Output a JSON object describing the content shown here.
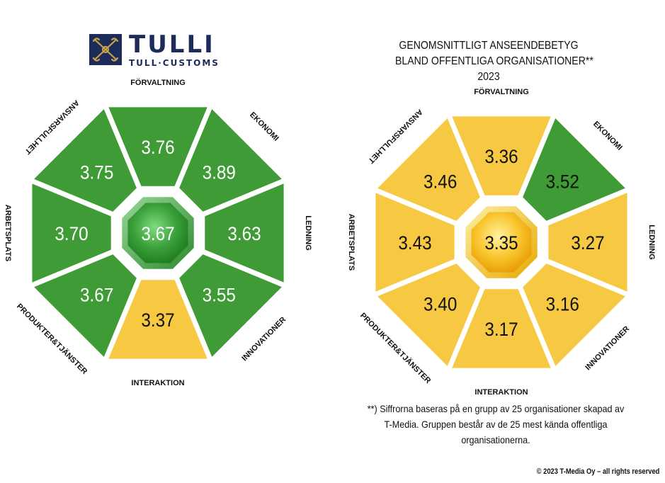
{
  "logo": {
    "name": "TULLI",
    "subtitle": "TULL·CUSTOMS"
  },
  "heading": {
    "line1": "GENOMSNITTLIGT ANSEENDEBETYG",
    "line2": "BLAND OFFENTLIGA ORGANISATIONER**",
    "line3": "2023"
  },
  "footnote": {
    "line1": "**) Siffrorna baseras på en grupp av 25 organisationer skapad av",
    "line2": "T-Media. Gruppen består av de 25 mest kända offentliga",
    "line3": "organisationerna."
  },
  "copyright": "© 2023 T-Media Oy – all rights reserved",
  "colors": {
    "green": "#3f9b35",
    "yellow": "#f7c842",
    "border": "#ffffff",
    "logo_blue": "#1c2b5a",
    "logo_gold": "#c9a24a"
  },
  "chart_data": [
    {
      "type": "radial-octagon",
      "center_value": "3.67",
      "center_color": "green",
      "segments": [
        {
          "label": "FÖRVALTNING",
          "value": "3.76",
          "color": "green"
        },
        {
          "label": "EKONOMI",
          "value": "3.89",
          "color": "green"
        },
        {
          "label": "LEDNING",
          "value": "3.63",
          "color": "green"
        },
        {
          "label": "INNOVATIONER",
          "value": "3.55",
          "color": "green"
        },
        {
          "label": "INTERAKTION",
          "value": "3.37",
          "color": "yellow"
        },
        {
          "label": "PRODUKTER&TJÄNSTER",
          "value": "3.67",
          "color": "green"
        },
        {
          "label": "ARBETSPLATS",
          "value": "3.70",
          "color": "green"
        },
        {
          "label": "ANSVARSFULLHET",
          "value": "3.75",
          "color": "green"
        }
      ]
    },
    {
      "type": "radial-octagon",
      "center_value": "3.35",
      "center_color": "yellow",
      "segments": [
        {
          "label": "FÖRVALTNING",
          "value": "3.36",
          "color": "yellow"
        },
        {
          "label": "EKONOMI",
          "value": "3.52",
          "color": "green"
        },
        {
          "label": "LEDNING",
          "value": "3.27",
          "color": "yellow"
        },
        {
          "label": "INNOVATIONER",
          "value": "3.16",
          "color": "yellow"
        },
        {
          "label": "INTERAKTION",
          "value": "3.17",
          "color": "yellow"
        },
        {
          "label": "PRODUKTER&TJÄNSTER",
          "value": "3.40",
          "color": "yellow"
        },
        {
          "label": "ARBETSPLATS",
          "value": "3.43",
          "color": "yellow"
        },
        {
          "label": "ANSVARSFULLHET",
          "value": "3.46",
          "color": "yellow"
        }
      ]
    }
  ]
}
